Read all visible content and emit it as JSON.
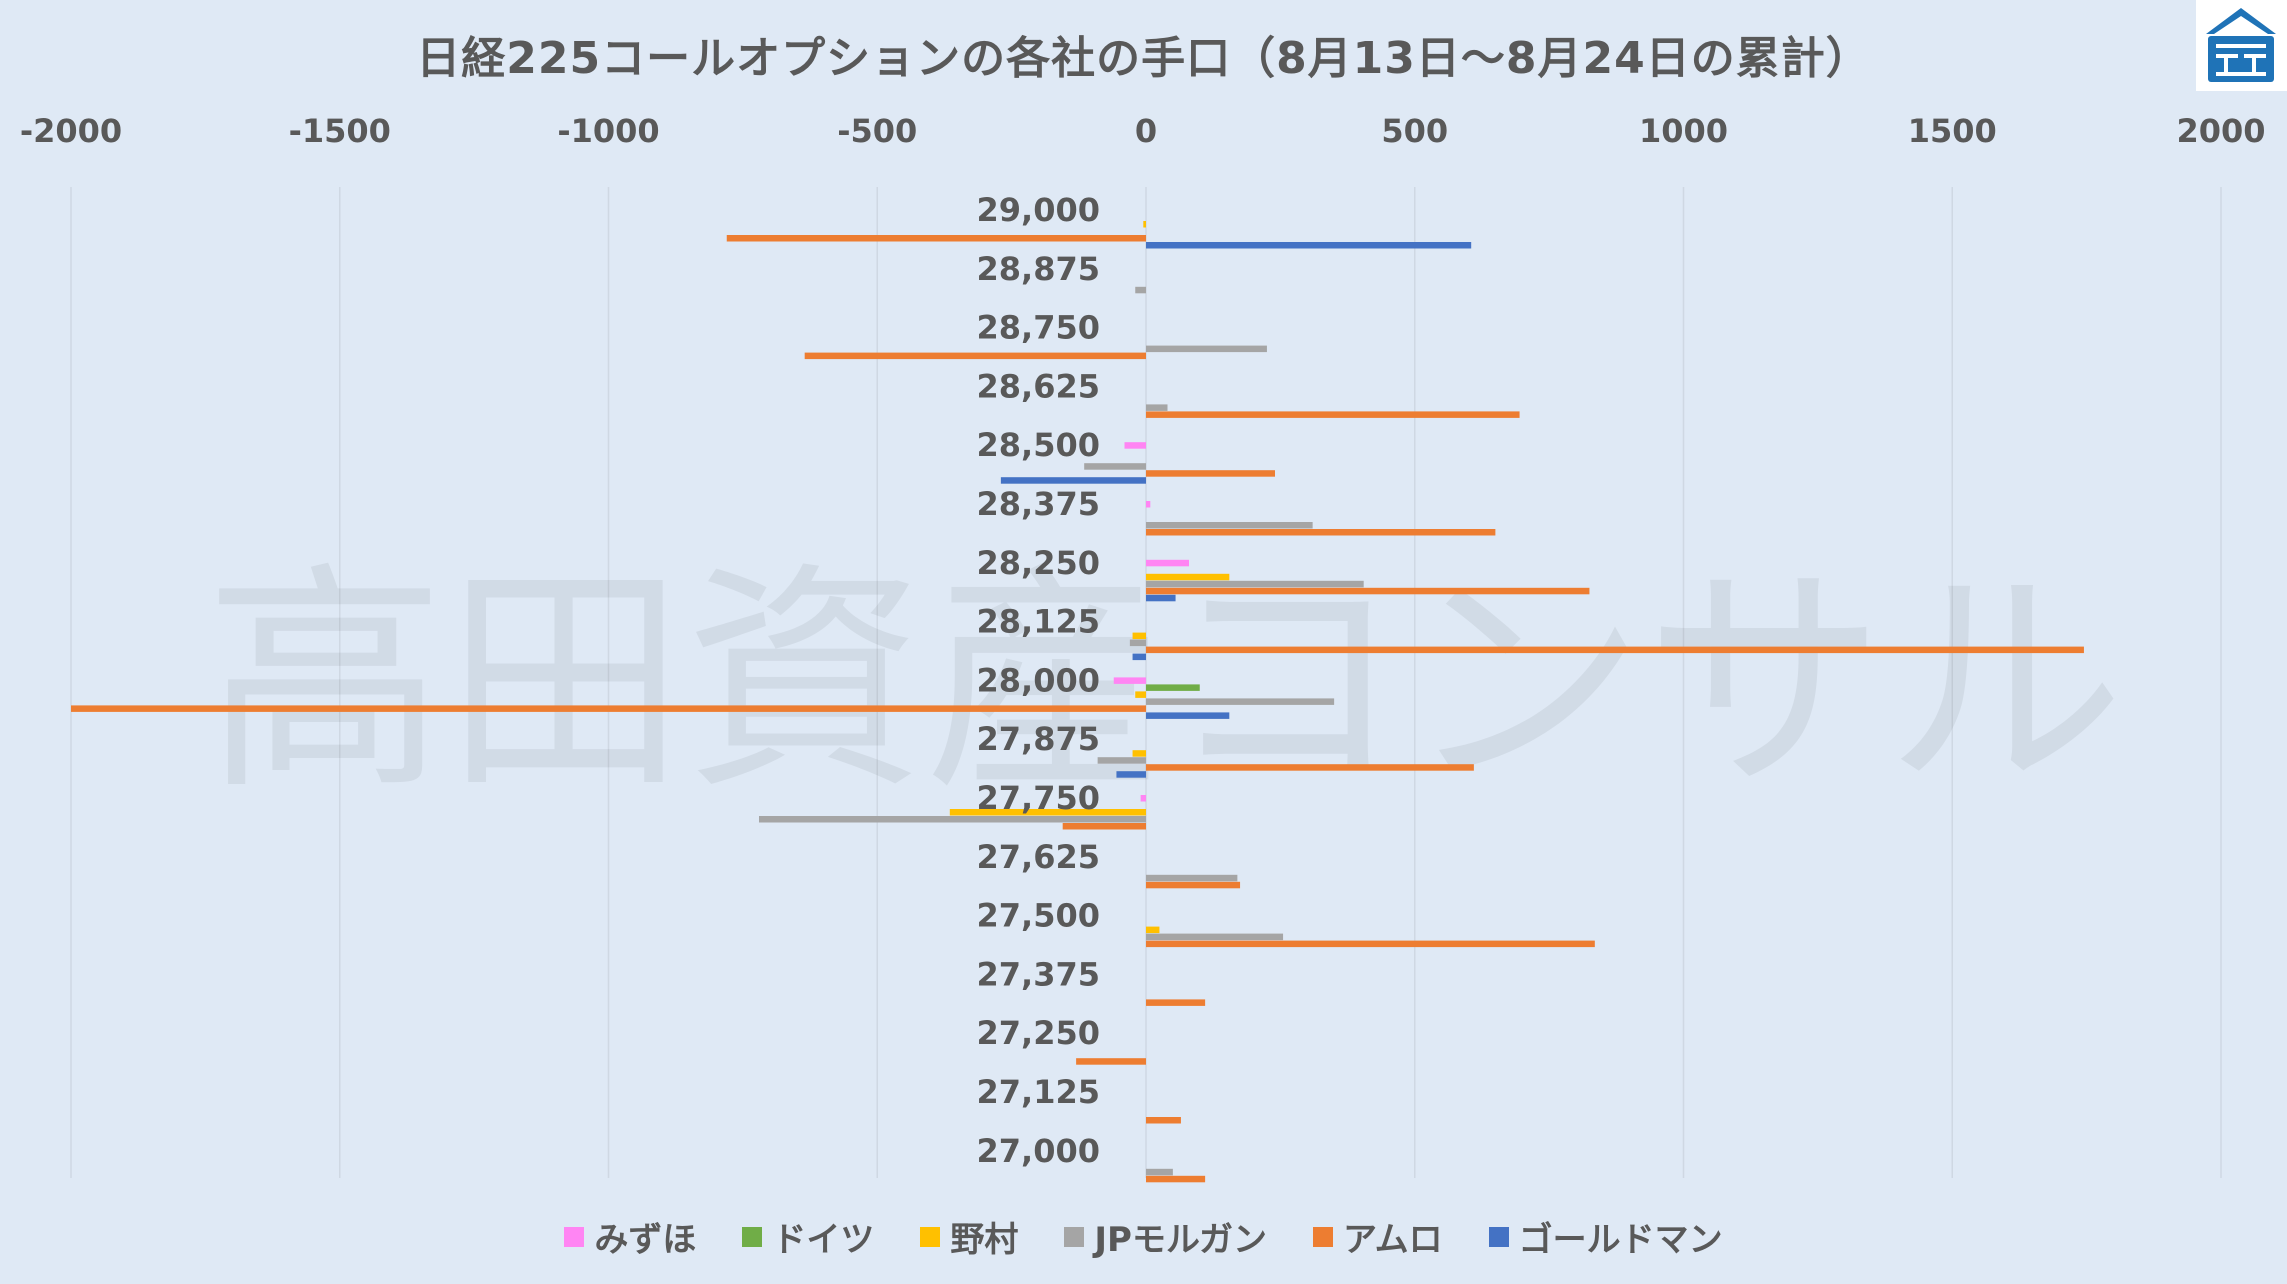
{
  "title": "日経225コールオプションの各社の手口（8月13日～8月24日の累計）",
  "logo_icon": "takada-logo-icon",
  "watermark": "高田資産コンサル",
  "chart_data": {
    "type": "bar",
    "orientation": "horizontal",
    "title": "日経225コールオプションの各社の手口（8月13日～8月24日の累計）",
    "xlim": [
      -2000,
      2000
    ],
    "x_ticks": [
      "-2000",
      "-1500",
      "-1000",
      "-500",
      "0",
      "500",
      "1000",
      "1500",
      "2000"
    ],
    "x_tick_values": [
      -2000,
      -1500,
      -1000,
      -500,
      0,
      500,
      1000,
      1500,
      2000
    ],
    "x_axis_position": "top",
    "grid": true,
    "legend_position": "bottom",
    "categories": [
      "29,000",
      "28,875",
      "28,750",
      "28,625",
      "28,500",
      "28,375",
      "28,250",
      "28,125",
      "28,000",
      "27,875",
      "27,750",
      "27,625",
      "27,500",
      "27,375",
      "27,250",
      "27,125",
      "27,000"
    ],
    "series": [
      {
        "name": "みずほ",
        "color": "#ff85f3",
        "values": [
          0,
          0,
          0,
          0,
          -40,
          8,
          80,
          0,
          -60,
          0,
          -10,
          0,
          0,
          0,
          0,
          0,
          0
        ]
      },
      {
        "name": "ドイツ",
        "color": "#70ad47",
        "values": [
          0,
          0,
          0,
          0,
          0,
          0,
          0,
          0,
          100,
          0,
          0,
          0,
          0,
          0,
          0,
          0,
          0
        ]
      },
      {
        "name": "野村",
        "color": "#ffc000",
        "values": [
          -5,
          0,
          0,
          0,
          0,
          0,
          155,
          -25,
          -20,
          -25,
          -365,
          0,
          25,
          0,
          0,
          0,
          0
        ]
      },
      {
        "name": "JPモルガン",
        "color": "#a5a5a5",
        "values": [
          0,
          -20,
          225,
          40,
          -115,
          310,
          405,
          -30,
          350,
          -90,
          -720,
          170,
          255,
          0,
          0,
          0,
          50
        ]
      },
      {
        "name": "アムロ",
        "color": "#ed7d31",
        "values": [
          -780,
          0,
          -635,
          695,
          240,
          650,
          825,
          1745,
          -2000,
          610,
          -155,
          175,
          835,
          110,
          -130,
          65,
          110
        ]
      },
      {
        "name": "ゴールドマン",
        "color": "#4472c4",
        "values": [
          605,
          0,
          0,
          0,
          -270,
          0,
          55,
          -25,
          155,
          -55,
          0,
          0,
          0,
          0,
          0,
          0,
          0
        ]
      }
    ]
  },
  "legend": [
    {
      "label": "みずほ",
      "color": "#ff85f3"
    },
    {
      "label": "ドイツ",
      "color": "#70ad47"
    },
    {
      "label": "野村",
      "color": "#ffc000"
    },
    {
      "label": "JPモルガン",
      "color": "#a5a5a5"
    },
    {
      "label": "アムロ",
      "color": "#ed7d31"
    },
    {
      "label": "ゴールドマン",
      "color": "#4472c4"
    }
  ]
}
